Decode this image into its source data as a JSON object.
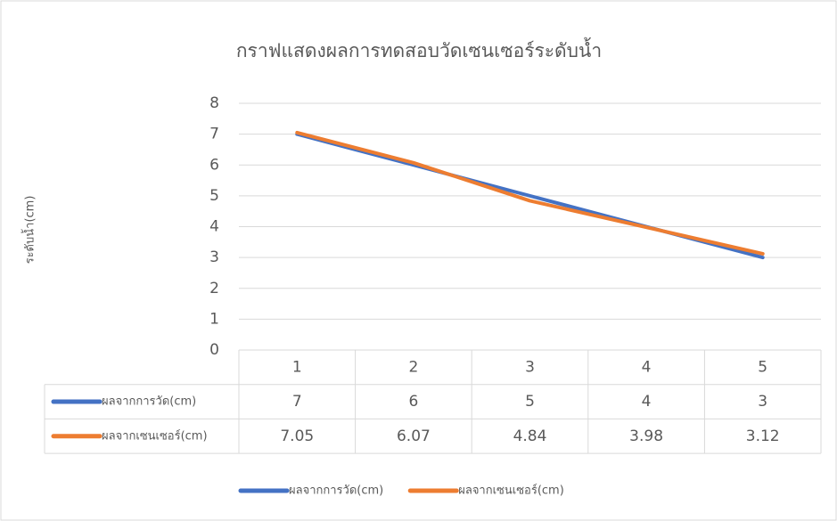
{
  "chart_data": {
    "type": "line",
    "title": "กราฟแสดงผลการทดสอบวัดเซนเซอร์ระดับน้ำ",
    "y_label": "ระดับน้ำ(cm)",
    "categories": [
      "1",
      "2",
      "3",
      "4",
      "5"
    ],
    "series": [
      {
        "name": "ผลจากการวัด(cm)",
        "color": "#4472c4",
        "values": [
          7,
          6,
          5,
          4,
          3
        ]
      },
      {
        "name": "ผลจากเซนเซอร์(cm)",
        "color": "#ed7d31",
        "values": [
          7.05,
          6.07,
          4.84,
          3.98,
          3.12
        ]
      }
    ],
    "ylim": [
      0,
      8
    ],
    "yticks": [
      0,
      1,
      2,
      3,
      4,
      5,
      6,
      7,
      8
    ],
    "grid": true,
    "data_table": true,
    "legend": "bottom"
  }
}
